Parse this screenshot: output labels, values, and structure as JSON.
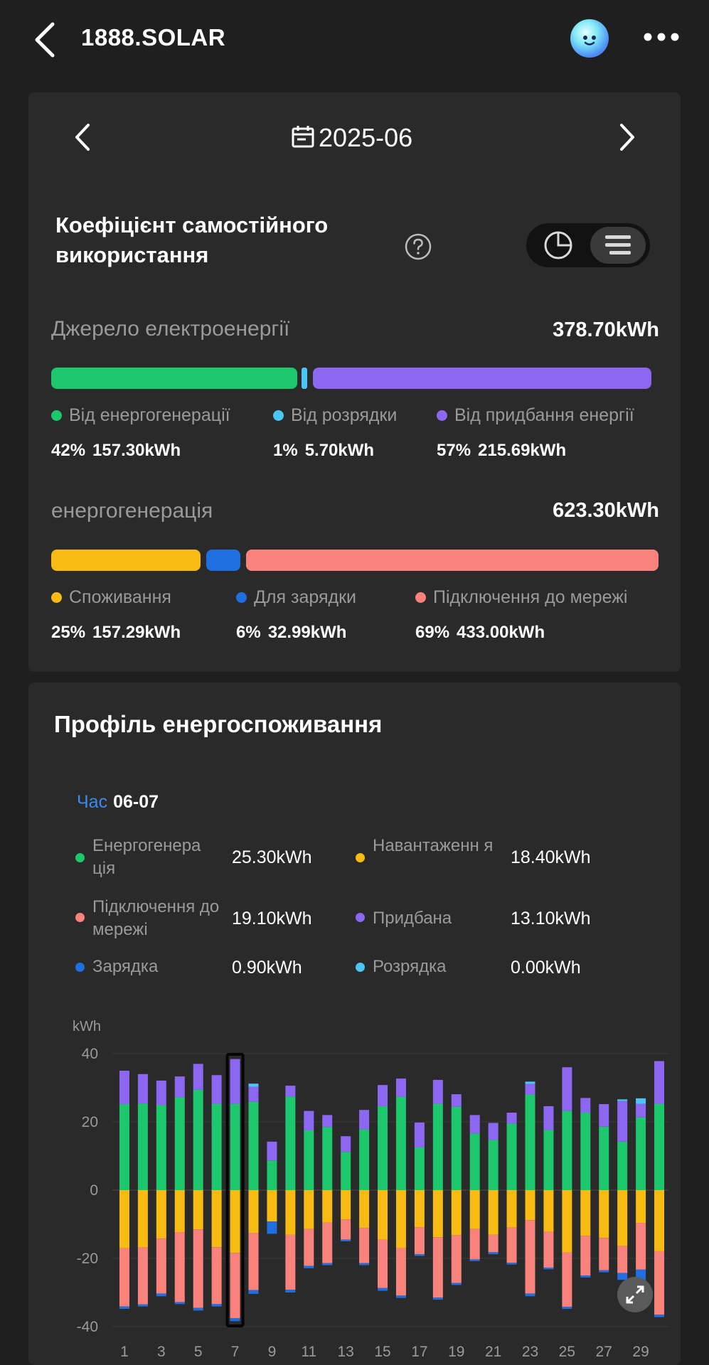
{
  "header": {
    "title": "1888.SOLAR"
  },
  "period": {
    "date": "2025-06"
  },
  "self_use": {
    "title": "Коефіцієнт самостійного використання",
    "source": {
      "label": "Джерело електроенергії",
      "total": "378.70kWh",
      "items": [
        {
          "label": "Від енергогенерації",
          "percent": "42%",
          "value": "157.30kWh",
          "color": "#1dc76b",
          "share": 0.415
        },
        {
          "label": "Від розрядки",
          "percent": "1%",
          "value": "5.70kWh",
          "color": "#4cc4f5",
          "share": 0.015
        },
        {
          "label": "Від придбання енергії",
          "percent": "57%",
          "value": "215.69kWh",
          "color": "#8c68f2",
          "share": 0.57
        }
      ]
    },
    "generation": {
      "label": "енергогенерація",
      "total": "623.30kWh",
      "items": [
        {
          "label": "Споживання",
          "percent": "25%",
          "value": "157.29kWh",
          "color": "#f7bb14",
          "share": 0.252
        },
        {
          "label": "Для зарядки",
          "percent": "6%",
          "value": "32.99kWh",
          "color": "#1f6fe0",
          "share": 0.053
        },
        {
          "label": "Підключення до мережі",
          "percent": "69%",
          "value": "433.00kWh",
          "color": "#f9837c",
          "share": 0.695
        }
      ]
    }
  },
  "profile": {
    "title": "Профіль енергоспоживання",
    "tooltip": {
      "label": "Час",
      "date": "06-07",
      "rows": [
        {
          "label": "Енергогенера ція",
          "value": "25.30kWh",
          "color": "#1dc76b"
        },
        {
          "label": "Навантаженн я",
          "value": "18.40kWh",
          "color": "#f7bb14"
        },
        {
          "label": "Підключення до мережі",
          "value": "19.10kWh",
          "color": "#f9837c"
        },
        {
          "label": "Придбана",
          "value": "13.10kWh",
          "color": "#8c68f2"
        },
        {
          "label": "Зарядка",
          "value": "0.90kWh",
          "color": "#1f6fe0"
        },
        {
          "label": "Розрядка",
          "value": "0.00kWh",
          "color": "#4cc4f5"
        }
      ]
    }
  },
  "chart_data": {
    "type": "bar",
    "ylabel": "kWh",
    "ylim": [
      -40,
      40
    ],
    "yticks": [
      40,
      20,
      0,
      -20,
      -40
    ],
    "x_tick_labels": [
      "1",
      "3",
      "5",
      "7",
      "9",
      "11",
      "13",
      "15",
      "17",
      "19",
      "21",
      "23",
      "25",
      "27",
      "29"
    ],
    "selected_day": 7,
    "colors": {
      "generation": "#1dc76b",
      "purchased": "#8c68f2",
      "discharge": "#4cc4f5",
      "load": "#f7bb14",
      "grid_export": "#f9837c",
      "charge": "#1f6fe0"
    },
    "days": [
      1,
      2,
      3,
      4,
      5,
      6,
      7,
      8,
      9,
      10,
      11,
      12,
      13,
      14,
      15,
      16,
      17,
      18,
      19,
      20,
      21,
      22,
      23,
      24,
      25,
      26,
      27,
      28,
      29,
      30
    ],
    "series": [
      {
        "name": "Енергогенерація",
        "values": [
          25.2,
          25.4,
          24.9,
          27.2,
          29.4,
          25.3,
          25.3,
          25.9,
          8.7,
          27.4,
          17.5,
          18.5,
          11.2,
          17.8,
          24.6,
          27.3,
          12.5,
          25.3,
          24.4,
          16.6,
          14.7,
          19.5,
          28.0,
          17.6,
          23.2,
          22.7,
          18.6,
          14.2,
          21.3,
          25.3
        ]
      },
      {
        "name": "Придбана",
        "values": [
          9.8,
          8.6,
          7.2,
          6.1,
          7.6,
          8.4,
          13.1,
          4.4,
          5.5,
          3.2,
          5.7,
          3.5,
          4.6,
          5.7,
          6.2,
          5.4,
          7.3,
          7.0,
          3.7,
          5.4,
          5.0,
          3.2,
          3.1,
          7.0,
          12.8,
          4.3,
          6.6,
          11.9,
          4.0,
          12.5
        ]
      },
      {
        "name": "Розрядка",
        "values": [
          0,
          0,
          0,
          0,
          0,
          0,
          0,
          0.9,
          0,
          0,
          0,
          0,
          0,
          0,
          0,
          0,
          0,
          0,
          0,
          0,
          0,
          0,
          0.7,
          0,
          0,
          0,
          0,
          0.5,
          1.6,
          0
        ]
      },
      {
        "name": "Навантаження",
        "values": [
          -17.0,
          -16.8,
          -14.2,
          -12.3,
          -11.5,
          -16.7,
          -18.4,
          -12.5,
          -9.2,
          -13.1,
          -11.4,
          -9.5,
          -8.6,
          -11.1,
          -14.5,
          -17.0,
          -10.9,
          -13.8,
          -13.2,
          -11.4,
          -13.1,
          -11.0,
          -8.8,
          -12.2,
          -18.3,
          -13.4,
          -14.0,
          -16.4,
          -9.6,
          -17.9
        ]
      },
      {
        "name": "Підключення до мережі",
        "values": [
          -17.1,
          -16.7,
          -16.1,
          -20.5,
          -23.0,
          -16.7,
          -19.1,
          -16.8,
          0,
          -16.1,
          -10.8,
          -11.9,
          -5.9,
          -10.3,
          -14.2,
          -13.9,
          -7.9,
          -17.7,
          -14.0,
          -8.9,
          -5.1,
          -10.3,
          -21.5,
          -10.5,
          -15.9,
          -11.6,
          -9.5,
          -7.9,
          -13.7,
          -18.6
        ]
      },
      {
        "name": "Зарядка",
        "values": [
          -0.7,
          -0.6,
          -0.8,
          -0.6,
          -0.8,
          -0.7,
          -0.9,
          -1.1,
          -3.6,
          -0.8,
          -0.7,
          -0.6,
          -0.5,
          -0.6,
          -0.8,
          -0.7,
          -0.5,
          -0.6,
          -0.6,
          -0.5,
          -0.6,
          -0.5,
          -0.8,
          -0.5,
          -0.6,
          -0.6,
          -0.6,
          -2.0,
          -3.2,
          -0.7
        ]
      }
    ]
  }
}
